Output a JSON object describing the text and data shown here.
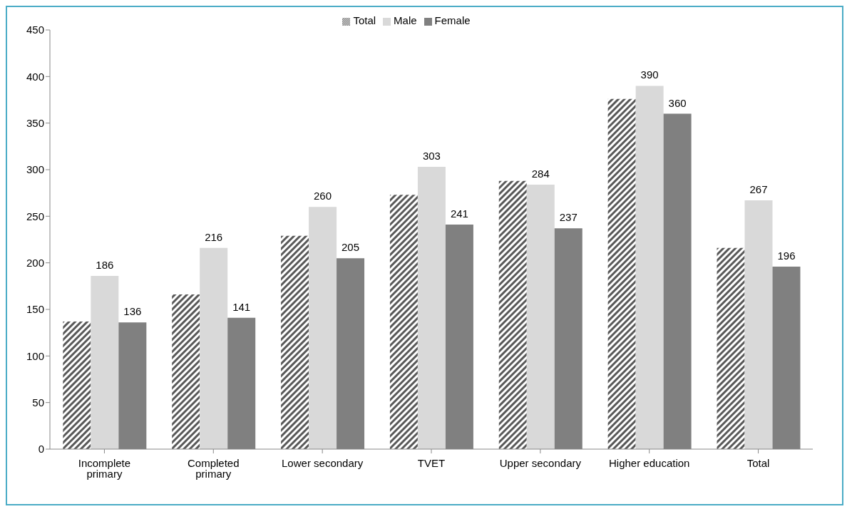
{
  "chart_data": {
    "type": "bar",
    "categories": [
      "Incomplete primary",
      "Completed primary",
      "Lower secondary",
      "TVET",
      "Upper secondary",
      "Higher education",
      "Total"
    ],
    "series": [
      {
        "name": "Total",
        "color": "#595959",
        "values": [
          137,
          166,
          229,
          273,
          288,
          376,
          216
        ]
      },
      {
        "name": "Male",
        "color": "#d9d9d9",
        "values": [
          186,
          216,
          260,
          303,
          284,
          390,
          267
        ],
        "value_labels": [
          "186",
          "216",
          "260",
          "303",
          "284",
          "390",
          "267"
        ]
      },
      {
        "name": "Female",
        "color": "#808080",
        "values": [
          136,
          141,
          205,
          241,
          237,
          360,
          196
        ],
        "value_labels": [
          "136",
          "141",
          "205",
          "241",
          "237",
          "360",
          "196"
        ]
      }
    ],
    "ylim": [
      0,
      450
    ],
    "yticks": [
      0,
      50,
      100,
      150,
      200,
      250,
      300,
      350,
      400,
      450
    ],
    "grid": false,
    "legend": "top"
  }
}
